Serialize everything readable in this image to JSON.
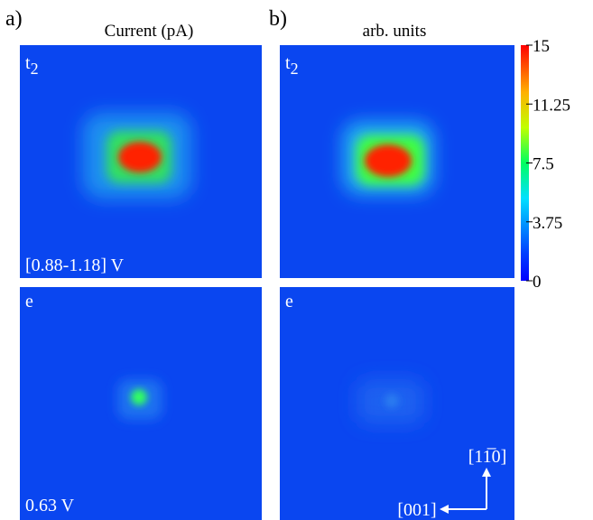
{
  "panels": [
    {
      "label": "a)",
      "title": "Current (pA)"
    },
    {
      "label": "b)",
      "title": "arb. units"
    }
  ],
  "images": [
    {
      "state": "t",
      "state_sub": "2",
      "bias": "[0.88-1.18] V"
    },
    {
      "state": "t",
      "state_sub": "2"
    },
    {
      "state": "e",
      "bias": "0.63 V"
    },
    {
      "state": "e"
    }
  ],
  "colorbar": {
    "lim": [
      0,
      15
    ],
    "ticks": [
      0,
      3.75,
      7.5,
      11.25,
      15
    ]
  },
  "directions": {
    "vertical": "[11̅0]",
    "horizontal": "[001]"
  }
}
